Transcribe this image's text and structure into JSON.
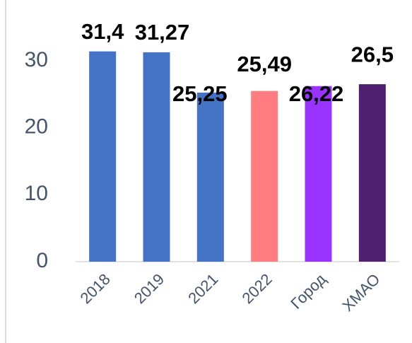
{
  "chart_data": {
    "type": "bar",
    "categories": [
      "2018",
      "2019",
      "2021",
      "2022",
      "Город",
      "ХМАО"
    ],
    "values": [
      31.4,
      31.27,
      25.25,
      25.49,
      26.22,
      26.5
    ],
    "value_labels": [
      "31,4",
      "31,27",
      "25,25",
      "25,49",
      "26,22",
      "26,5"
    ],
    "colors": [
      "#4472c4",
      "#4472c4",
      "#4472c4",
      "#ff7c80",
      "#9933ff",
      "#4f1f6f"
    ],
    "ylim": [
      0,
      35
    ],
    "yticks": [
      0,
      10,
      20,
      30
    ],
    "grid": false
  }
}
